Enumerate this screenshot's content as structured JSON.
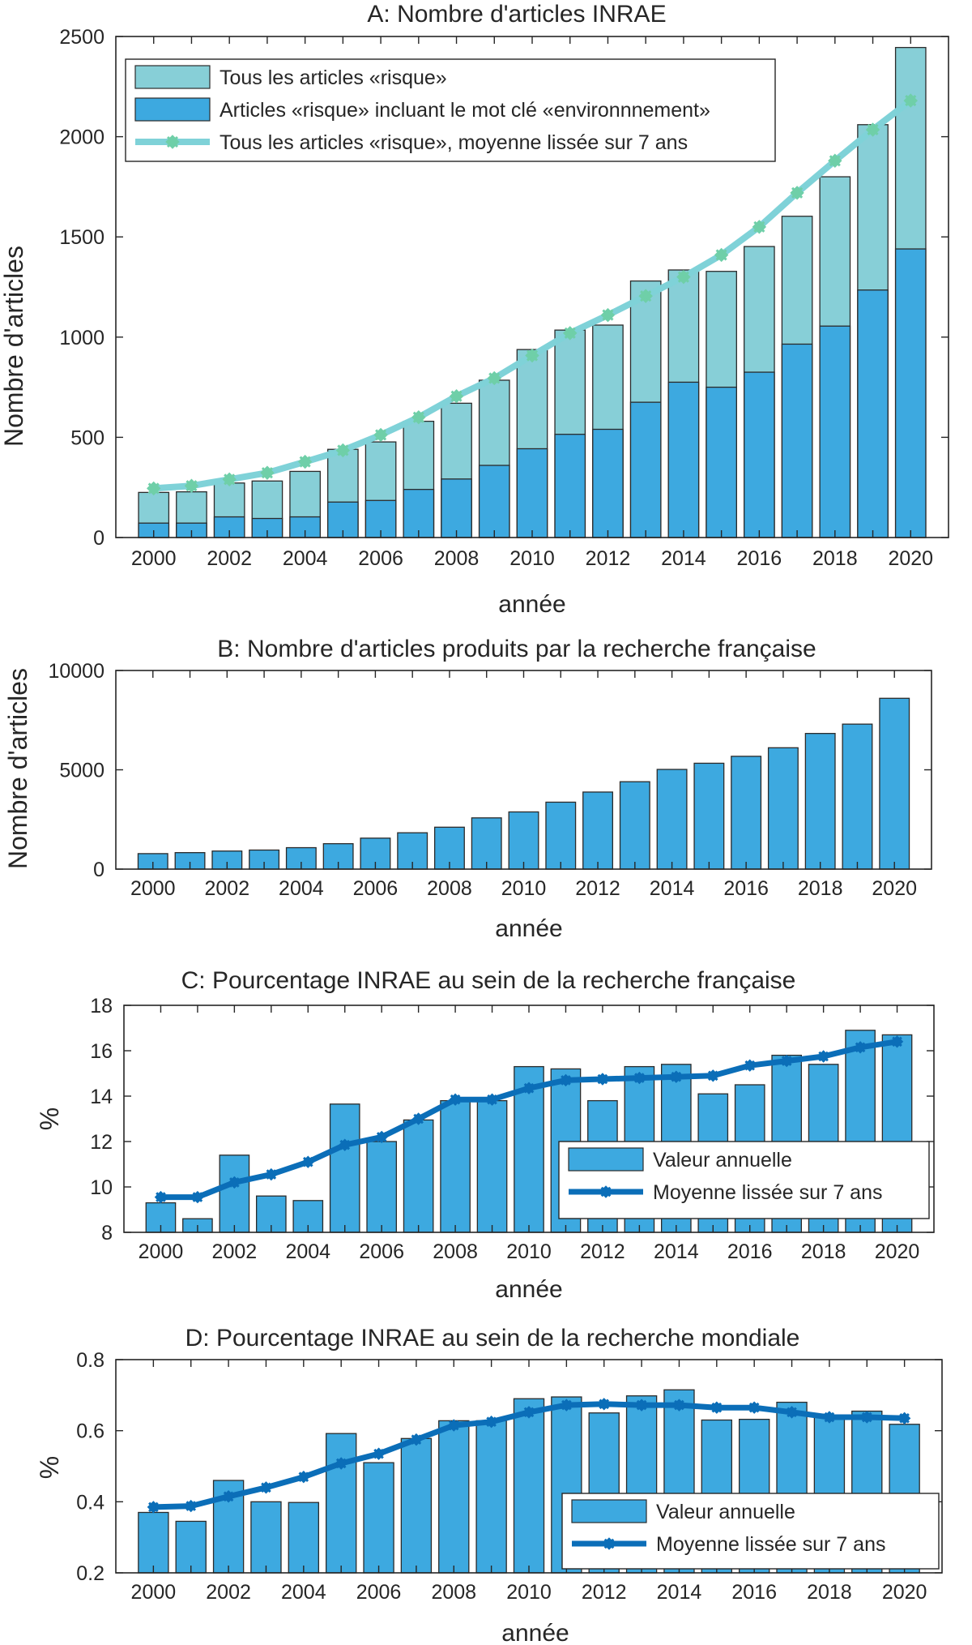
{
  "chart_data": [
    {
      "id": "A",
      "type": "bar",
      "title": "A: Nombre d'articles INRAE",
      "xlabel": "année",
      "ylabel": "Nombre d'articles",
      "ylim": [
        0,
        2500
      ],
      "yticks": [
        0,
        500,
        1000,
        1500,
        2000,
        2500
      ],
      "ytick_labels": [
        "0",
        "500",
        "1000",
        "1500",
        "2000",
        "2500"
      ],
      "categories": [
        2000,
        2001,
        2002,
        2003,
        2004,
        2005,
        2006,
        2007,
        2008,
        2009,
        2010,
        2011,
        2012,
        2013,
        2014,
        2015,
        2016,
        2017,
        2018,
        2019,
        2020
      ],
      "xtick_labels": [
        "2000",
        "2002",
        "2004",
        "2006",
        "2008",
        "2010",
        "2012",
        "2014",
        "2016",
        "2018",
        "2020"
      ],
      "legend_position": "top-left",
      "series": [
        {
          "name": "Tous les articles «risque»",
          "kind": "bar",
          "color": "#87cfd7",
          "values": [
            225,
            228,
            272,
            282,
            330,
            440,
            477,
            580,
            670,
            785,
            938,
            1035,
            1060,
            1280,
            1335,
            1328,
            1452,
            1603,
            1800,
            2060,
            2445
          ]
        },
        {
          "name": "Articles «risque» incluant le mot clé «environnnement»",
          "kind": "bar",
          "color": "#3da9e0",
          "values": [
            72,
            72,
            103,
            95,
            103,
            177,
            185,
            240,
            292,
            360,
            443,
            515,
            540,
            675,
            775,
            750,
            825,
            965,
            1055,
            1235,
            1440
          ]
        },
        {
          "name": "Tous les articles «risque», moyenne lissée sur 7 ans",
          "kind": "line",
          "color": "#7fd2d8",
          "marker_color": "#6fcfa8",
          "values": [
            245,
            258,
            290,
            323,
            378,
            435,
            512,
            600,
            705,
            795,
            908,
            1020,
            1110,
            1205,
            1300,
            1410,
            1550,
            1720,
            1880,
            2035,
            2180
          ]
        }
      ]
    },
    {
      "id": "B",
      "type": "bar",
      "title": "B: Nombre d'articles produits par la recherche française",
      "xlabel": "année",
      "ylabel": "Nombre d'articles",
      "ylim": [
        0,
        10000
      ],
      "yticks": [
        0,
        5000,
        10000
      ],
      "ytick_labels": [
        "0",
        "5000",
        "10000"
      ],
      "categories": [
        2000,
        2001,
        2002,
        2003,
        2004,
        2005,
        2006,
        2007,
        2008,
        2009,
        2010,
        2011,
        2012,
        2013,
        2014,
        2015,
        2016,
        2017,
        2018,
        2019,
        2020
      ],
      "xtick_labels": [
        "2000",
        "2002",
        "2004",
        "2006",
        "2008",
        "2010",
        "2012",
        "2014",
        "2016",
        "2018",
        "2020"
      ],
      "series": [
        {
          "name": "Articles",
          "kind": "bar",
          "color": "#3da9e0",
          "values": [
            780,
            830,
            910,
            960,
            1080,
            1280,
            1560,
            1830,
            2110,
            2580,
            2880,
            3370,
            3880,
            4400,
            5020,
            5330,
            5680,
            6110,
            6830,
            7300,
            8600
          ]
        }
      ]
    },
    {
      "id": "C",
      "type": "bar",
      "title": "C: Pourcentage INRAE au sein de la recherche française",
      "xlabel": "année",
      "ylabel": "%",
      "ylim": [
        8,
        18
      ],
      "yticks": [
        8,
        10,
        12,
        14,
        16,
        18
      ],
      "ytick_labels": [
        "8",
        "10",
        "12",
        "14",
        "16",
        "18"
      ],
      "categories": [
        2000,
        2001,
        2002,
        2003,
        2004,
        2005,
        2006,
        2007,
        2008,
        2009,
        2010,
        2011,
        2012,
        2013,
        2014,
        2015,
        2016,
        2017,
        2018,
        2019,
        2020
      ],
      "xtick_labels": [
        "2000",
        "2002",
        "2004",
        "2006",
        "2008",
        "2010",
        "2012",
        "2014",
        "2016",
        "2018",
        "2020"
      ],
      "legend_position": "bottom-right",
      "series": [
        {
          "name": "Valeur annuelle",
          "kind": "bar",
          "color": "#3da9e0",
          "values": [
            9.3,
            8.6,
            11.4,
            9.6,
            9.4,
            13.65,
            12.0,
            12.95,
            13.8,
            13.8,
            15.3,
            15.2,
            13.8,
            15.3,
            15.4,
            14.1,
            14.5,
            15.8,
            15.4,
            16.9,
            16.7
          ]
        },
        {
          "name": "Moyenne lissée sur 7 ans",
          "kind": "line",
          "color": "#0b6eb8",
          "values": [
            9.55,
            9.55,
            10.2,
            10.55,
            11.1,
            11.85,
            12.2,
            13.0,
            13.85,
            13.85,
            14.35,
            14.7,
            14.75,
            14.8,
            14.85,
            14.9,
            15.35,
            15.55,
            15.75,
            16.15,
            16.4
          ]
        }
      ]
    },
    {
      "id": "D",
      "type": "bar",
      "title": "D: Pourcentage INRAE au sein de la recherche mondiale",
      "xlabel": "année",
      "ylabel": "%",
      "ylim": [
        0.2,
        0.8
      ],
      "yticks": [
        0.2,
        0.4,
        0.6,
        0.8
      ],
      "ytick_labels": [
        "0.2",
        "0.4",
        "0.6",
        "0.8"
      ],
      "categories": [
        2000,
        2001,
        2002,
        2003,
        2004,
        2005,
        2006,
        2007,
        2008,
        2009,
        2010,
        2011,
        2012,
        2013,
        2014,
        2015,
        2016,
        2017,
        2018,
        2019,
        2020
      ],
      "xtick_labels": [
        "2000",
        "2002",
        "2004",
        "2006",
        "2008",
        "2010",
        "2012",
        "2014",
        "2016",
        "2018",
        "2020"
      ],
      "legend_position": "bottom-right",
      "series": [
        {
          "name": "Valeur annuelle",
          "kind": "bar",
          "color": "#3da9e0",
          "values": [
            0.37,
            0.345,
            0.46,
            0.4,
            0.398,
            0.592,
            0.51,
            0.578,
            0.628,
            0.628,
            0.69,
            0.695,
            0.65,
            0.698,
            0.715,
            0.63,
            0.632,
            0.68,
            0.64,
            0.655,
            0.618
          ]
        },
        {
          "name": "Moyenne lissée sur 7 ans",
          "kind": "line",
          "color": "#0b6eb8",
          "values": [
            0.385,
            0.388,
            0.415,
            0.44,
            0.47,
            0.508,
            0.535,
            0.575,
            0.615,
            0.625,
            0.652,
            0.672,
            0.675,
            0.672,
            0.672,
            0.665,
            0.665,
            0.652,
            0.638,
            0.638,
            0.635
          ]
        }
      ]
    }
  ]
}
